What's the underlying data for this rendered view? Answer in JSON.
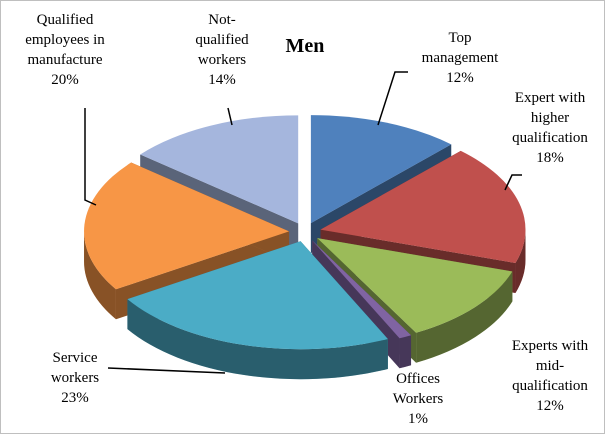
{
  "chart_data": {
    "type": "pie",
    "title": "Men",
    "categories": [
      "Top\nmanagement",
      "Expert with\nhigher\nqualification",
      "Experts with\nmid-\nqualification",
      "Offices\nWorkers",
      "Service\nworkers",
      "Qualified\nemployees in\nmanufacture",
      "Not-\nqualified\nworkers"
    ],
    "values": [
      12,
      18,
      12,
      1,
      23,
      20,
      14
    ],
    "value_labels": [
      "12%",
      "18%",
      "12%",
      "1%",
      "23%",
      "20%",
      "14%"
    ],
    "colors": [
      "#4f81bd",
      "#c0504d",
      "#9bbb59",
      "#8064a2",
      "#4bacc6",
      "#f79646",
      "#a5b6dd"
    ]
  }
}
